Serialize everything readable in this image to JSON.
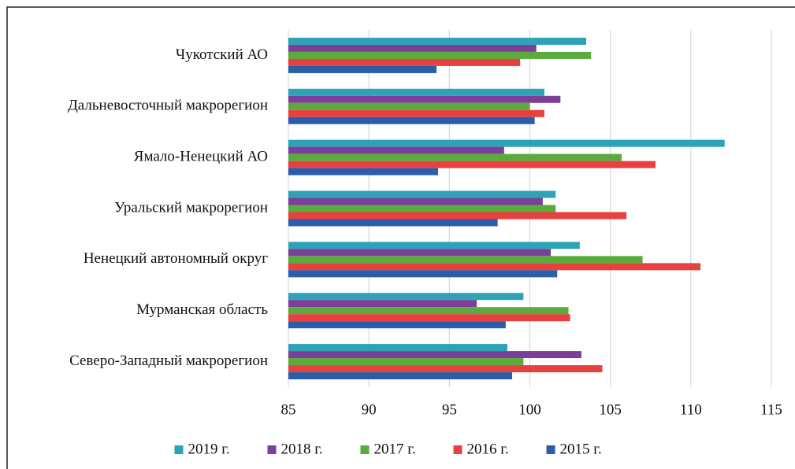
{
  "chart_data": {
    "type": "hbar",
    "categories": [
      "Чукотский АО",
      "Дальневосточный макрорегион",
      "Ямало-Ненецкий АО",
      "Уральский макрорегион",
      "Ненецкий автономный округ",
      "Мурманская область",
      "Северо-Западный макрорегион"
    ],
    "series": [
      {
        "name": "2019 г.",
        "color": "#2ea3b8",
        "values": [
          103.5,
          100.9,
          112.1,
          101.6,
          103.1,
          99.6,
          98.6
        ]
      },
      {
        "name": "2018 г.",
        "color": "#7b3f98",
        "values": [
          100.4,
          101.9,
          98.4,
          100.8,
          101.3,
          96.7,
          103.2
        ]
      },
      {
        "name": "2017 г.",
        "color": "#5aab3c",
        "values": [
          103.8,
          100.0,
          105.7,
          101.6,
          107.0,
          102.4,
          99.6
        ]
      },
      {
        "name": "2016 г.",
        "color": "#e84040",
        "values": [
          99.4,
          100.9,
          107.8,
          106.0,
          110.6,
          102.5,
          104.5
        ]
      },
      {
        "name": "2015 г.",
        "color": "#2a5ea8",
        "values": [
          94.2,
          100.3,
          94.3,
          98.0,
          101.7,
          98.5,
          98.9
        ]
      }
    ],
    "xlim": [
      85,
      115
    ],
    "xticks": [
      85,
      90,
      95,
      100,
      105,
      110,
      115
    ],
    "grid": true,
    "legend": "bottom"
  }
}
